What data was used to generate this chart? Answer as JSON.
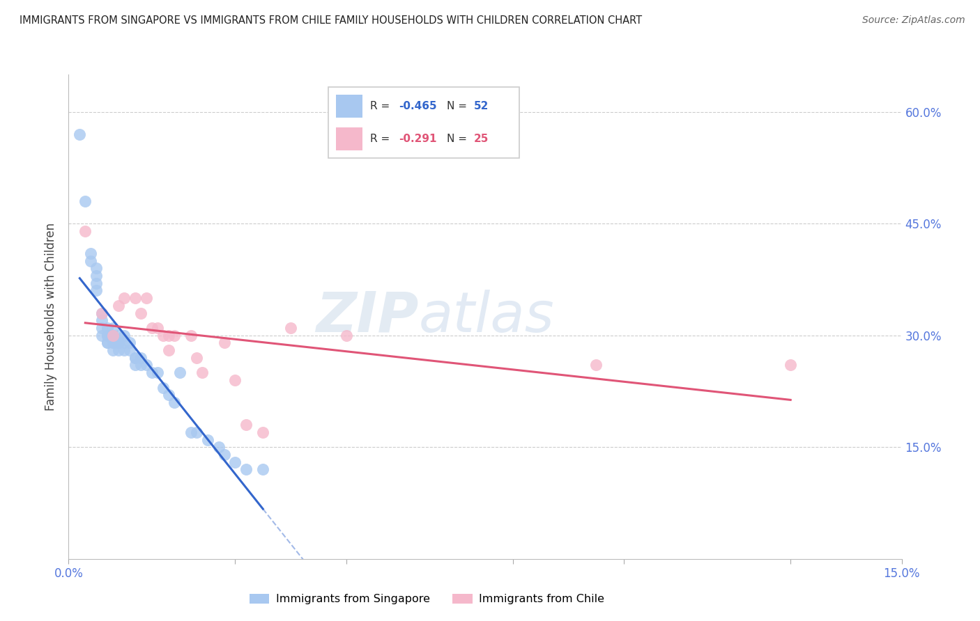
{
  "title": "IMMIGRANTS FROM SINGAPORE VS IMMIGRANTS FROM CHILE FAMILY HOUSEHOLDS WITH CHILDREN CORRELATION CHART",
  "source": "Source: ZipAtlas.com",
  "ylabel": "Family Households with Children",
  "xlim": [
    0.0,
    0.15
  ],
  "ylim": [
    0.0,
    0.65
  ],
  "xtick_vals": [
    0.0,
    0.15
  ],
  "ytick_vals": [
    0.15,
    0.3,
    0.45,
    0.6
  ],
  "grid_color": "#cccccc",
  "background": "#ffffff",
  "singapore_color": "#a8c8f0",
  "chile_color": "#f5b8cb",
  "singapore_line_color": "#3366cc",
  "chile_line_color": "#e05577",
  "singapore_R": "-0.465",
  "singapore_N": "52",
  "chile_R": "-0.291",
  "chile_N": "25",
  "legend_label_singapore": "Immigrants from Singapore",
  "legend_label_chile": "Immigrants from Chile",
  "watermark_zip": "ZIP",
  "watermark_atlas": "atlas",
  "singapore_x": [
    0.002,
    0.003,
    0.004,
    0.004,
    0.005,
    0.005,
    0.005,
    0.005,
    0.006,
    0.006,
    0.006,
    0.006,
    0.007,
    0.007,
    0.007,
    0.007,
    0.007,
    0.008,
    0.008,
    0.008,
    0.008,
    0.008,
    0.008,
    0.009,
    0.009,
    0.009,
    0.009,
    0.01,
    0.01,
    0.01,
    0.011,
    0.011,
    0.012,
    0.012,
    0.012,
    0.013,
    0.013,
    0.014,
    0.015,
    0.016,
    0.017,
    0.018,
    0.019,
    0.02,
    0.022,
    0.023,
    0.025,
    0.027,
    0.028,
    0.03,
    0.032,
    0.035
  ],
  "singapore_y": [
    0.57,
    0.48,
    0.4,
    0.41,
    0.39,
    0.38,
    0.37,
    0.36,
    0.33,
    0.32,
    0.31,
    0.3,
    0.31,
    0.3,
    0.3,
    0.29,
    0.29,
    0.31,
    0.3,
    0.3,
    0.29,
    0.29,
    0.28,
    0.3,
    0.29,
    0.29,
    0.28,
    0.3,
    0.29,
    0.28,
    0.29,
    0.28,
    0.27,
    0.27,
    0.26,
    0.27,
    0.26,
    0.26,
    0.25,
    0.25,
    0.23,
    0.22,
    0.21,
    0.25,
    0.17,
    0.17,
    0.16,
    0.15,
    0.14,
    0.13,
    0.12,
    0.12
  ],
  "chile_x": [
    0.003,
    0.006,
    0.008,
    0.009,
    0.01,
    0.012,
    0.013,
    0.014,
    0.015,
    0.016,
    0.017,
    0.018,
    0.018,
    0.019,
    0.022,
    0.023,
    0.024,
    0.028,
    0.03,
    0.032,
    0.035,
    0.04,
    0.05,
    0.095,
    0.13
  ],
  "chile_y": [
    0.44,
    0.33,
    0.3,
    0.34,
    0.35,
    0.35,
    0.33,
    0.35,
    0.31,
    0.31,
    0.3,
    0.3,
    0.28,
    0.3,
    0.3,
    0.27,
    0.25,
    0.29,
    0.24,
    0.18,
    0.17,
    0.31,
    0.3,
    0.26,
    0.26
  ]
}
